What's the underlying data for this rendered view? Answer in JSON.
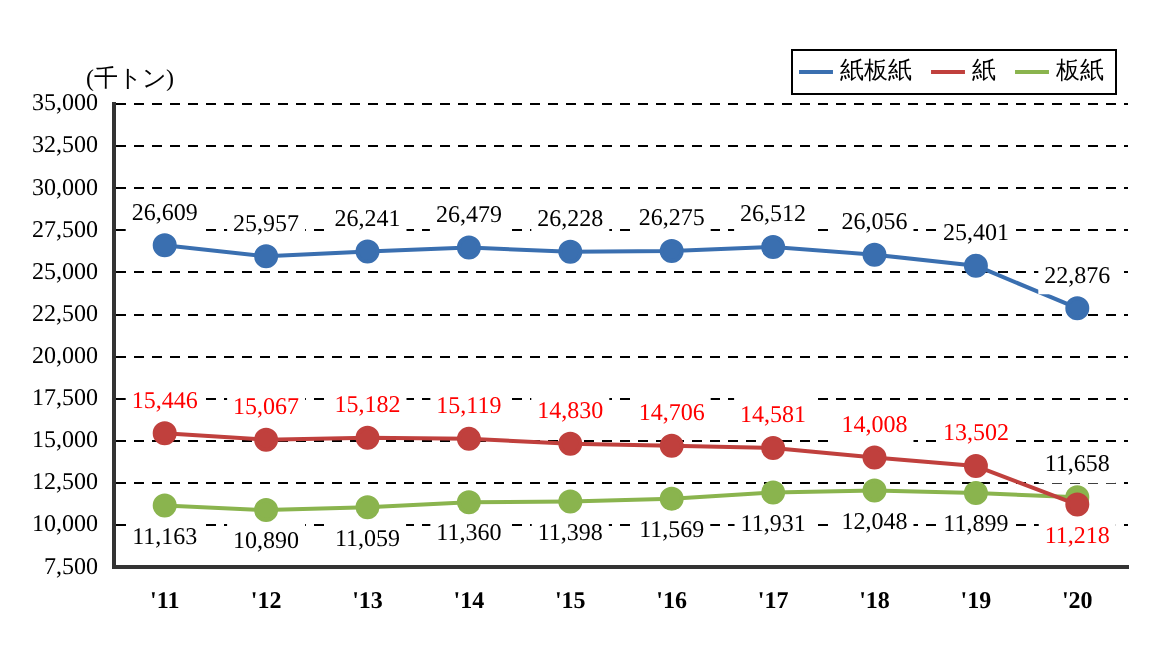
{
  "chart_data": {
    "type": "line",
    "ylabel": "(千トン)",
    "categories": [
      "'11",
      "'12",
      "'13",
      "'14",
      "'15",
      "'16",
      "'17",
      "'18",
      "'19",
      "'20"
    ],
    "series": [
      {
        "name": "紙板紙",
        "color": "#3a6fb0",
        "values": [
          26609,
          25957,
          26241,
          26479,
          26228,
          26275,
          26512,
          26056,
          25401,
          22876
        ],
        "value_labels": [
          "26,609",
          "25,957",
          "26,241",
          "26,479",
          "26,228",
          "26,275",
          "26,512",
          "26,056",
          "25,401",
          "22,876"
        ]
      },
      {
        "name": "紙",
        "color": "#c0403d",
        "values": [
          15446,
          15067,
          15182,
          15119,
          14830,
          14706,
          14581,
          14008,
          13502,
          11218
        ],
        "value_labels": [
          "15,446",
          "15,067",
          "15,182",
          "15,119",
          "14,830",
          "14,706",
          "14,581",
          "14,008",
          "13,502",
          "11,218"
        ]
      },
      {
        "name": "板紙",
        "color": "#8ab44e",
        "values": [
          11163,
          10890,
          11059,
          11360,
          11398,
          11569,
          11931,
          12048,
          11899,
          11658
        ],
        "value_labels": [
          "11,163",
          "10,890",
          "11,059",
          "11,360",
          "11,398",
          "11,569",
          "11,931",
          "12,048",
          "11,899",
          "11,658"
        ]
      }
    ],
    "ylim": [
      7500,
      35000
    ],
    "yticks": [
      {
        "value": 7500,
        "label": "7,500"
      },
      {
        "value": 10000,
        "label": "10,000"
      },
      {
        "value": 12500,
        "label": "12,500"
      },
      {
        "value": 15000,
        "label": "15,000"
      },
      {
        "value": 17500,
        "label": "17,500"
      },
      {
        "value": 20000,
        "label": "20,000"
      },
      {
        "value": 22500,
        "label": "22,500"
      },
      {
        "value": 25000,
        "label": "25,000"
      },
      {
        "value": 27500,
        "label": "27,500"
      },
      {
        "value": 30000,
        "label": "30,000"
      },
      {
        "value": 32500,
        "label": "32,500"
      },
      {
        "value": 35000,
        "label": "35,000"
      }
    ],
    "grid": "y",
    "legend": "top right",
    "marker": "circle",
    "line_style": "solid"
  }
}
